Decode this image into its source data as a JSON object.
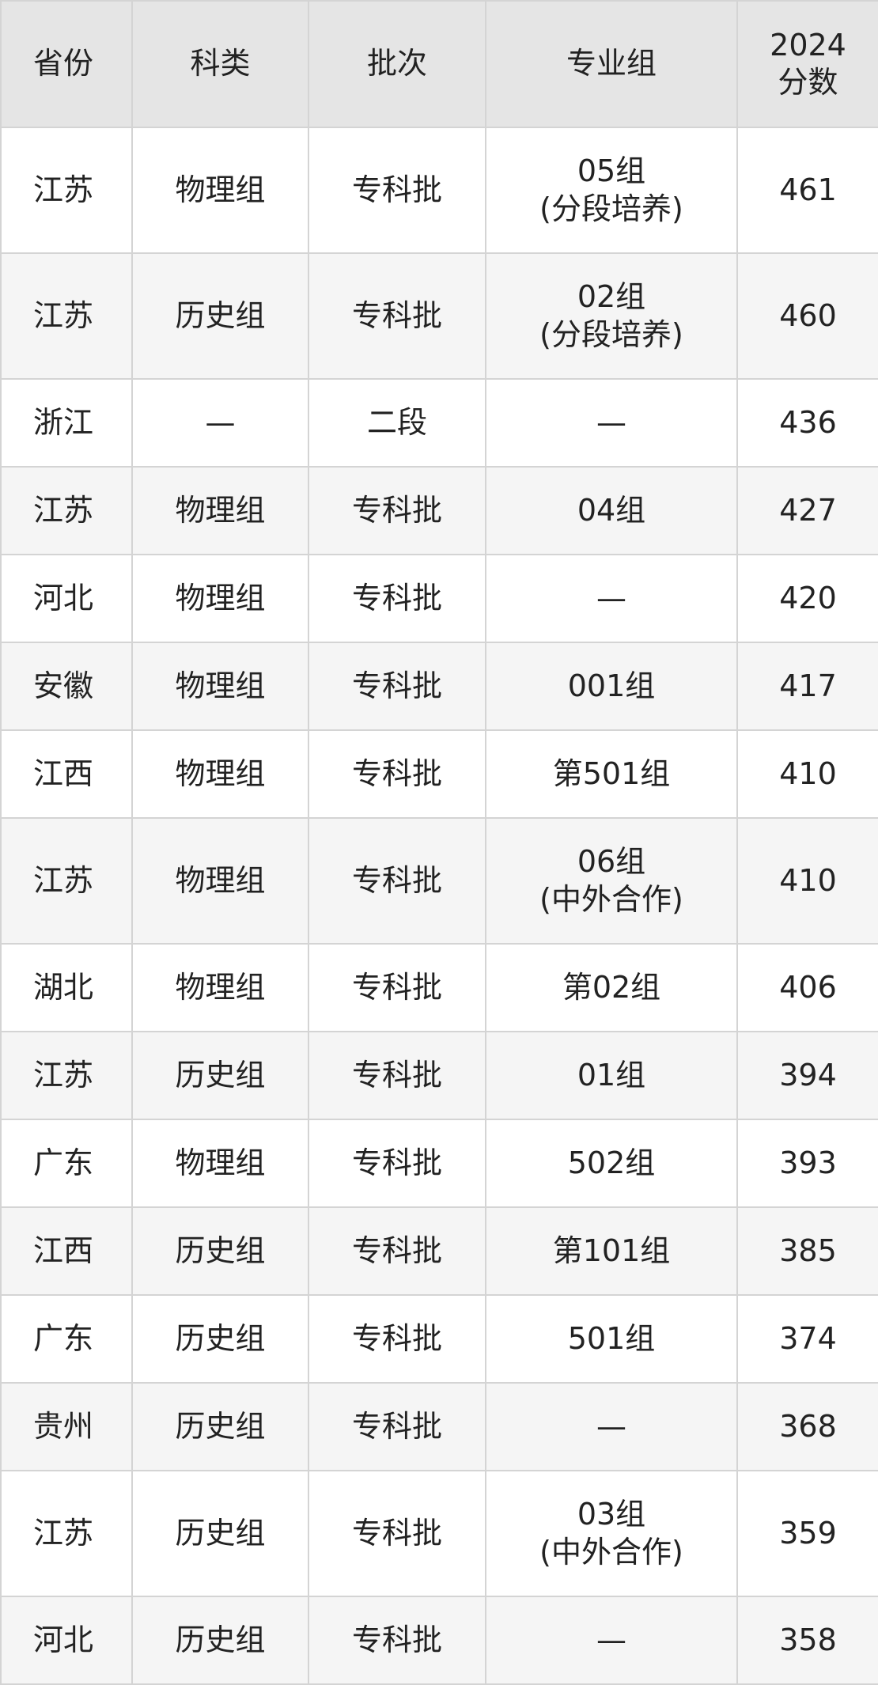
{
  "table": {
    "header": [
      "省份",
      "科类",
      "批次",
      "专业组",
      "2024\n分数"
    ],
    "rows": [
      [
        "江苏",
        "物理组",
        "专科批",
        "05组\n(分段培养)",
        461
      ],
      [
        "江苏",
        "历史组",
        "专科批",
        "02组\n(分段培养)",
        460
      ],
      [
        "浙江",
        "—",
        "二段",
        "—",
        436
      ],
      [
        "江苏",
        "物理组",
        "专科批",
        "04组",
        427
      ],
      [
        "河北",
        "物理组",
        "专科批",
        "—",
        420
      ],
      [
        "安徽",
        "物理组",
        "专科批",
        "001组",
        417
      ],
      [
        "江西",
        "物理组",
        "专科批",
        "第501组",
        410
      ],
      [
        "江苏",
        "物理组",
        "专科批",
        "06组\n(中外合作)",
        410
      ],
      [
        "湖北",
        "物理组",
        "专科批",
        "第02组",
        406
      ],
      [
        "江苏",
        "历史组",
        "专科批",
        "01组",
        394
      ],
      [
        "广东",
        "物理组",
        "专科批",
        "502组",
        393
      ],
      [
        "江西",
        "历史组",
        "专科批",
        "第101组",
        385
      ],
      [
        "广东",
        "历史组",
        "专科批",
        "501组",
        374
      ],
      [
        "贵州",
        "历史组",
        "专科批",
        "—",
        368
      ],
      [
        "江苏",
        "历史组",
        "专科批",
        "03组\n(中外合作)",
        359
      ],
      [
        "河北",
        "历史组",
        "专科批",
        "—",
        358
      ]
    ]
  }
}
